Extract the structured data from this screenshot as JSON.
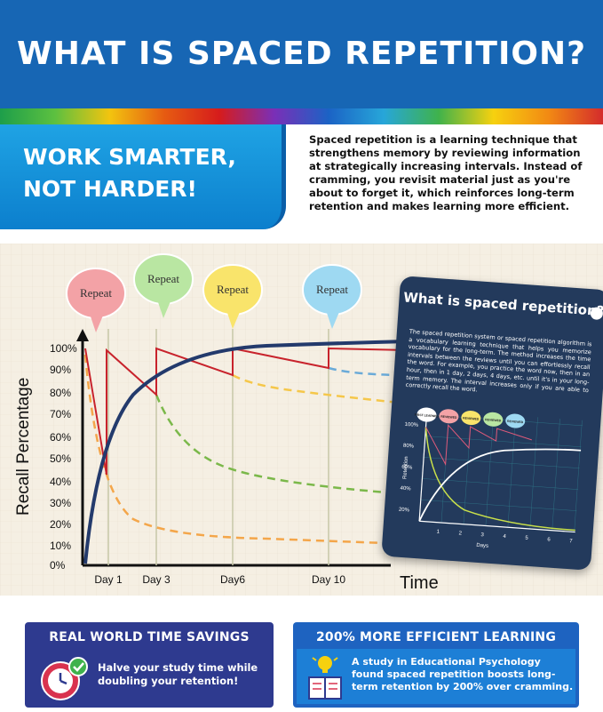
{
  "header": {
    "title": "WHAT IS SPACED REPETITION?"
  },
  "tagline": {
    "line1": "WORK SMARTER,",
    "line2": "NOT HARDER!"
  },
  "intro": "Spaced repetition is a learning technique that strengthens memory by reviewing information at strategically increasing intervals. Instead of cramming, you revisit material just as you're about to forget it, which reinforces long-term retention and makes learning more efficient.",
  "chart_data": {
    "type": "line",
    "ylabel": "Recall Percentage",
    "xlabel": "Time",
    "y_ticks": [
      "0%",
      "10%",
      "20%",
      "30%",
      "40%",
      "50%",
      "60%",
      "70%",
      "80%",
      "90%",
      "100%"
    ],
    "x_ticks": [
      "Day 1",
      "Day 3",
      "Day6",
      "Day 10"
    ],
    "bubbles": [
      "Repeat",
      "Repeat",
      "Repeat",
      "Repeat"
    ],
    "colors": {
      "bubble1": "#f3a2a6",
      "bubble2": "#b9e6a2",
      "bubble3": "#f9e46b",
      "bubble4": "#9ed9f2",
      "curve": "#233a6c",
      "forget": "#c8232c"
    }
  },
  "card": {
    "title": "What is spaced repetition?",
    "body": "The spaced repetition system or spaced repetition algorithm is a vocabulary learning technique that helps you memorize vocabulary for the long-term. The method increases the time intervals between the reviews until you can effortlessly recall the word. For example, you practice the word now, then in an hour, then in 1 day, 2 days, 4 days, etc. until it's in your long-term memory. The interval increases only if you are able to correctly recall the word.",
    "bubbles": [
      "FIRST LEARNED",
      "REVIEWED",
      "REVIEWED",
      "REVIEWED",
      "REVIEWED"
    ],
    "y_ticks": [
      "100%",
      "80%",
      "60%",
      "40%",
      "20%"
    ],
    "x_ticks": [
      "1",
      "2",
      "3",
      "4",
      "5",
      "6",
      "7"
    ],
    "ylabel": "Retention",
    "xlabel": "Days"
  },
  "box1": {
    "title": "REAL WORLD TIME SAVINGS",
    "text": "Halve your study time while doubling your retention!",
    "icon": "clock-check-icon"
  },
  "box2": {
    "title": "200% MORE EFFICIENT LEARNING",
    "text": "A study in Educational Psychology found spaced repetition boosts long-term retention by 200% over cramming.",
    "icon": "book-lightbulb-icon"
  }
}
